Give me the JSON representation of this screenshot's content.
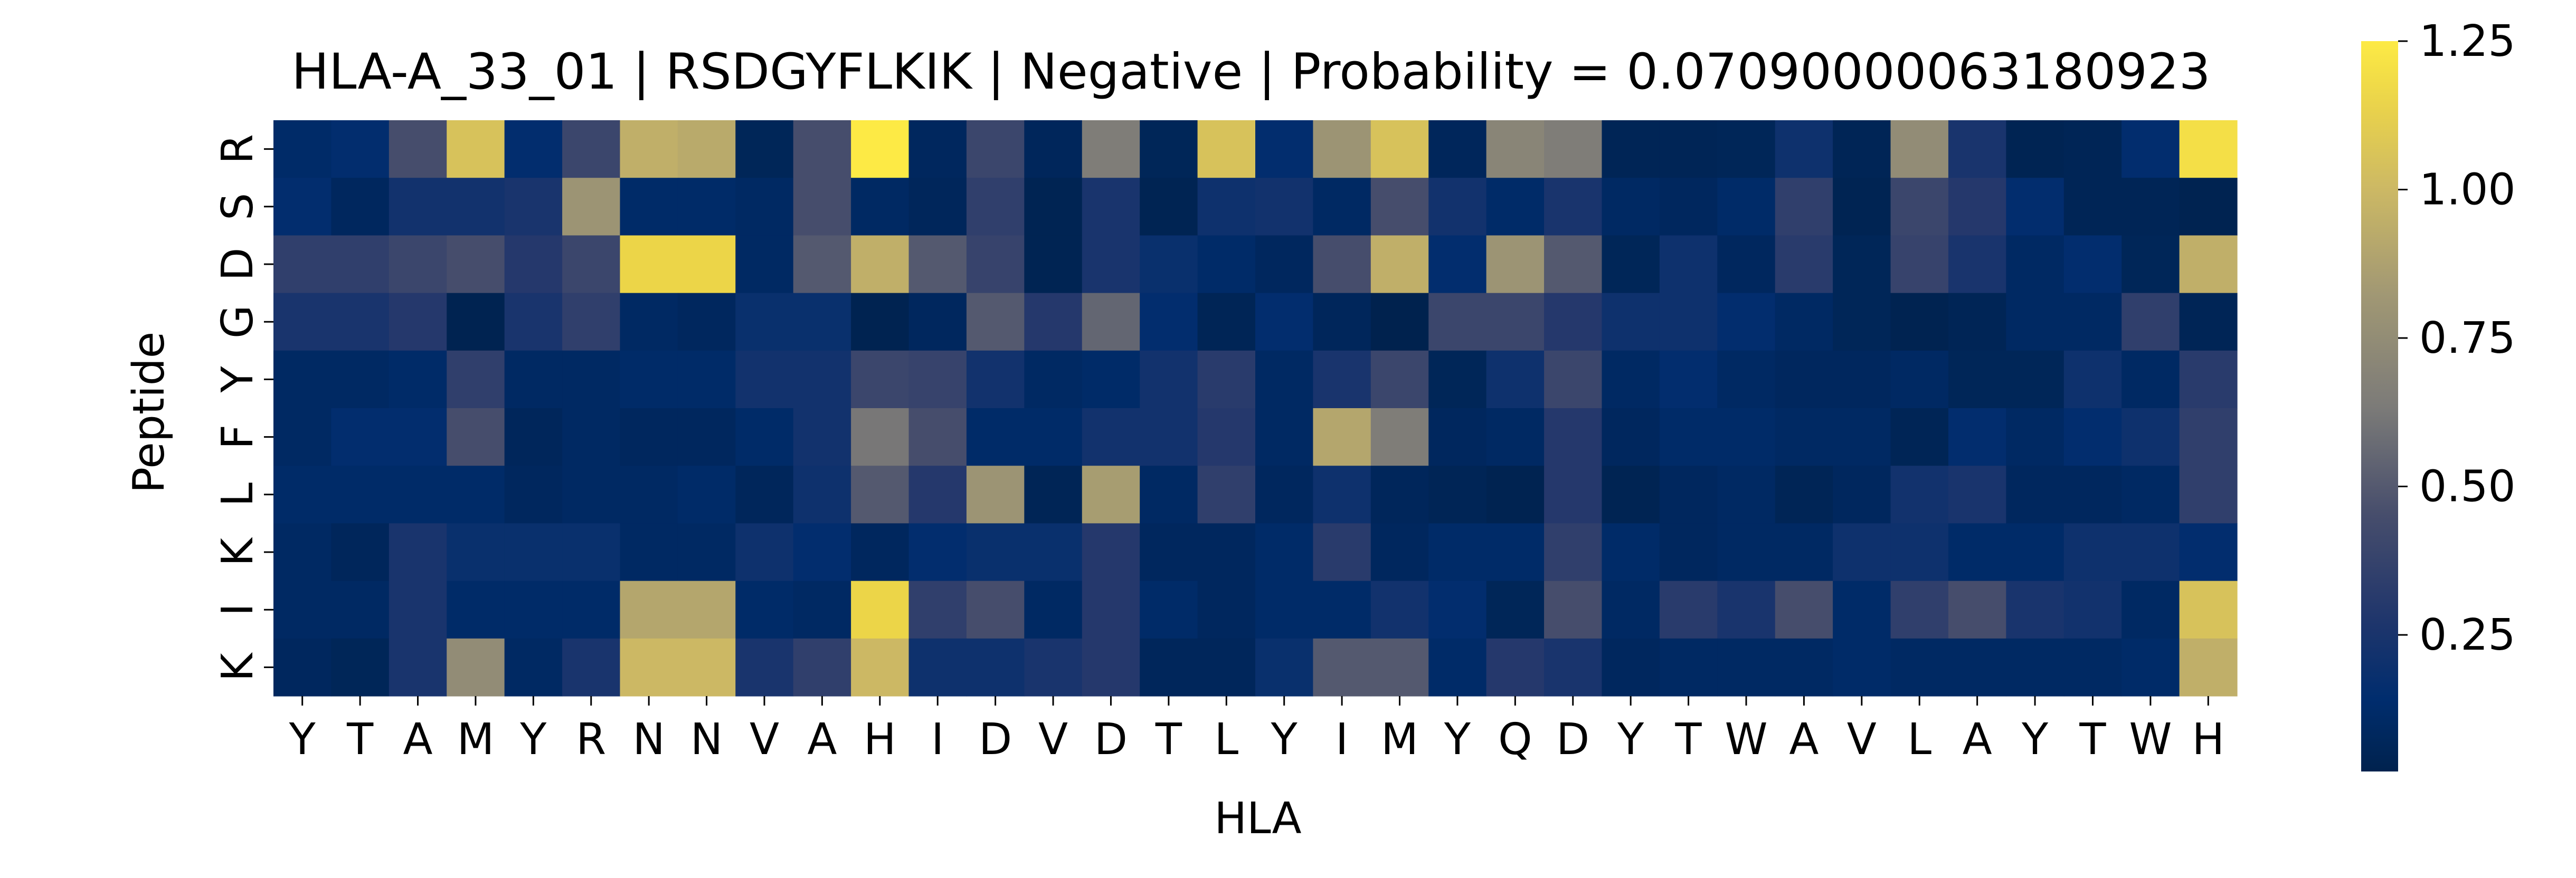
{
  "chart_data": {
    "type": "heatmap",
    "title": "HLA-A_33_01 | RSDGYFLKIK | Negative | Probability = 0.07090000063180923",
    "xlabel": "HLA",
    "ylabel": "Peptide",
    "x_categories": [
      "Y",
      "T",
      "A",
      "M",
      "Y",
      "R",
      "N",
      "N",
      "V",
      "A",
      "H",
      "I",
      "D",
      "V",
      "D",
      "T",
      "L",
      "Y",
      "I",
      "M",
      "Y",
      "Q",
      "D",
      "Y",
      "T",
      "W",
      "A",
      "V",
      "L",
      "A",
      "Y",
      "T",
      "W",
      "H"
    ],
    "y_categories": [
      "R",
      "S",
      "D",
      "G",
      "Y",
      "F",
      "L",
      "K",
      "I",
      "K"
    ],
    "colormap": "cividis",
    "color_range": [
      0.02,
      1.25
    ],
    "colorbar_ticks": [
      "0.25",
      "0.50",
      "0.75",
      "1.00",
      "1.25"
    ],
    "colorbar_tick_values": [
      0.25,
      0.5,
      0.75,
      1.0,
      1.25
    ],
    "values": [
      [
        0.12,
        0.15,
        0.45,
        1.05,
        0.15,
        0.4,
        0.95,
        0.92,
        0.06,
        0.45,
        1.25,
        0.08,
        0.4,
        0.07,
        0.65,
        0.06,
        1.05,
        0.15,
        0.8,
        1.05,
        0.07,
        0.7,
        0.65,
        0.05,
        0.05,
        0.06,
        0.2,
        0.05,
        0.75,
        0.25,
        0.04,
        0.05,
        0.15,
        1.2
      ],
      [
        0.15,
        0.08,
        0.22,
        0.22,
        0.25,
        0.8,
        0.12,
        0.12,
        0.1,
        0.45,
        0.1,
        0.07,
        0.35,
        0.04,
        0.25,
        0.04,
        0.2,
        0.22,
        0.1,
        0.45,
        0.22,
        0.12,
        0.25,
        0.1,
        0.08,
        0.12,
        0.35,
        0.04,
        0.4,
        0.3,
        0.15,
        0.05,
        0.05,
        0.03
      ],
      [
        0.35,
        0.35,
        0.4,
        0.45,
        0.3,
        0.4,
        1.15,
        1.15,
        0.1,
        0.5,
        0.95,
        0.5,
        0.38,
        0.04,
        0.25,
        0.18,
        0.12,
        0.08,
        0.45,
        0.95,
        0.15,
        0.8,
        0.5,
        0.06,
        0.2,
        0.08,
        0.32,
        0.06,
        0.38,
        0.25,
        0.1,
        0.15,
        0.06,
        0.95
      ],
      [
        0.25,
        0.25,
        0.3,
        0.03,
        0.25,
        0.35,
        0.1,
        0.08,
        0.18,
        0.18,
        0.03,
        0.08,
        0.5,
        0.3,
        0.55,
        0.15,
        0.05,
        0.15,
        0.07,
        0.02,
        0.4,
        0.4,
        0.3,
        0.2,
        0.2,
        0.15,
        0.1,
        0.06,
        0.03,
        0.05,
        0.1,
        0.1,
        0.35,
        0.05
      ],
      [
        0.1,
        0.1,
        0.12,
        0.35,
        0.1,
        0.1,
        0.12,
        0.12,
        0.22,
        0.22,
        0.4,
        0.38,
        0.22,
        0.1,
        0.12,
        0.22,
        0.32,
        0.1,
        0.25,
        0.4,
        0.06,
        0.2,
        0.4,
        0.1,
        0.15,
        0.1,
        0.08,
        0.08,
        0.1,
        0.06,
        0.06,
        0.2,
        0.1,
        0.32
      ],
      [
        0.1,
        0.15,
        0.15,
        0.45,
        0.07,
        0.1,
        0.08,
        0.08,
        0.12,
        0.22,
        0.62,
        0.45,
        0.12,
        0.12,
        0.22,
        0.22,
        0.3,
        0.1,
        0.9,
        0.65,
        0.08,
        0.1,
        0.3,
        0.08,
        0.12,
        0.12,
        0.1,
        0.1,
        0.05,
        0.15,
        0.1,
        0.15,
        0.2,
        0.35
      ],
      [
        0.12,
        0.12,
        0.12,
        0.12,
        0.08,
        0.1,
        0.1,
        0.12,
        0.07,
        0.2,
        0.5,
        0.3,
        0.8,
        0.05,
        0.85,
        0.1,
        0.35,
        0.08,
        0.2,
        0.07,
        0.05,
        0.03,
        0.3,
        0.04,
        0.08,
        0.1,
        0.05,
        0.08,
        0.22,
        0.25,
        0.08,
        0.08,
        0.1,
        0.35
      ],
      [
        0.1,
        0.07,
        0.25,
        0.18,
        0.18,
        0.18,
        0.1,
        0.1,
        0.2,
        0.15,
        0.08,
        0.15,
        0.18,
        0.18,
        0.3,
        0.08,
        0.08,
        0.12,
        0.32,
        0.08,
        0.12,
        0.12,
        0.35,
        0.12,
        0.08,
        0.1,
        0.1,
        0.2,
        0.2,
        0.12,
        0.12,
        0.2,
        0.2,
        0.15
      ],
      [
        0.1,
        0.1,
        0.25,
        0.12,
        0.12,
        0.12,
        0.9,
        0.9,
        0.12,
        0.1,
        1.15,
        0.35,
        0.45,
        0.1,
        0.3,
        0.12,
        0.08,
        0.12,
        0.12,
        0.22,
        0.15,
        0.06,
        0.45,
        0.1,
        0.32,
        0.25,
        0.45,
        0.12,
        0.35,
        0.45,
        0.25,
        0.22,
        0.1,
        1.05
      ],
      [
        0.08,
        0.06,
        0.25,
        0.75,
        0.1,
        0.25,
        1.0,
        1.0,
        0.25,
        0.35,
        1.0,
        0.2,
        0.2,
        0.25,
        0.3,
        0.07,
        0.07,
        0.18,
        0.5,
        0.5,
        0.12,
        0.3,
        0.25,
        0.08,
        0.1,
        0.1,
        0.1,
        0.12,
        0.1,
        0.1,
        0.1,
        0.1,
        0.12,
        0.95
      ]
    ]
  }
}
